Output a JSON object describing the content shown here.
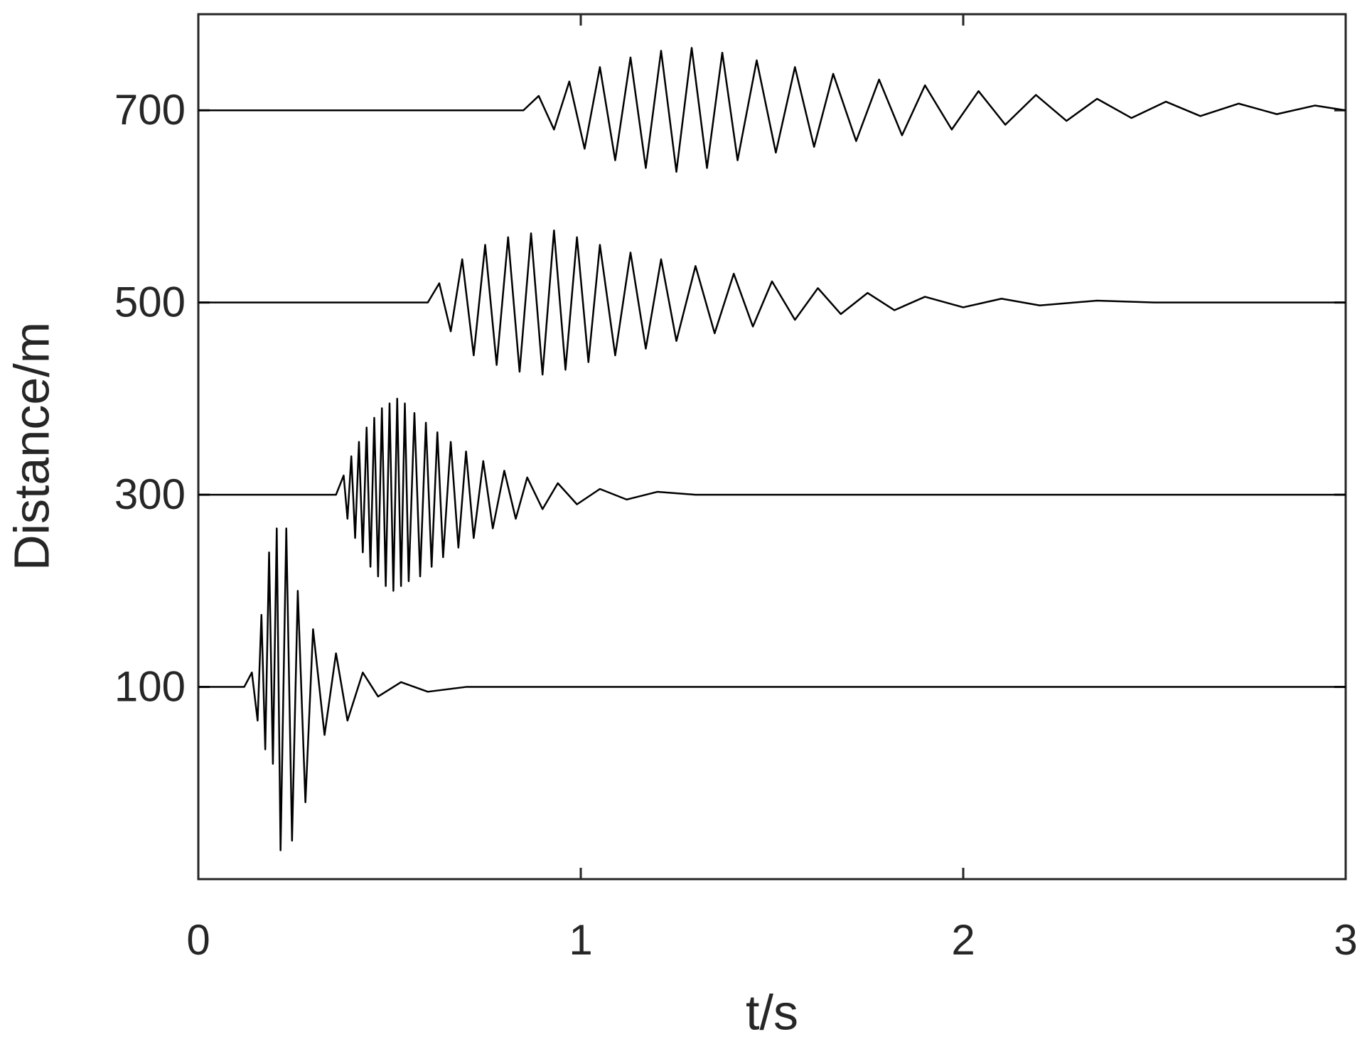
{
  "chart_data": {
    "type": "line",
    "xlabel": "t/s",
    "ylabel": "Distance/m",
    "xlim": [
      0,
      3
    ],
    "xticks": [
      0,
      1,
      2,
      3
    ],
    "ylim": [
      -100,
      800
    ],
    "yticks": [
      100,
      300,
      500,
      700
    ],
    "grid": false,
    "series": [
      {
        "color": "#000000",
        "x": [
          0,
          0.12,
          0.14,
          0.155,
          0.165,
          0.175,
          0.185,
          0.195,
          0.205,
          0.215,
          0.23,
          0.245,
          0.26,
          0.28,
          0.3,
          0.33,
          0.36,
          0.39,
          0.43,
          0.47,
          0.53,
          0.6,
          0.7,
          3
        ],
        "values": [
          100,
          100,
          115,
          65,
          175,
          35,
          240,
          20,
          265,
          -70,
          265,
          -60,
          200,
          -20,
          160,
          50,
          135,
          65,
          115,
          90,
          105,
          95,
          100,
          100
        ]
      },
      {
        "color": "#000000",
        "x": [
          0,
          0.36,
          0.38,
          0.39,
          0.4,
          0.41,
          0.42,
          0.43,
          0.44,
          0.45,
          0.46,
          0.47,
          0.48,
          0.49,
          0.5,
          0.51,
          0.52,
          0.53,
          0.54,
          0.55,
          0.565,
          0.58,
          0.595,
          0.61,
          0.625,
          0.64,
          0.66,
          0.68,
          0.7,
          0.72,
          0.745,
          0.77,
          0.8,
          0.83,
          0.86,
          0.9,
          0.94,
          0.99,
          1.05,
          1.12,
          1.2,
          1.3,
          3
        ],
        "values": [
          300,
          300,
          320,
          275,
          340,
          255,
          355,
          240,
          370,
          225,
          380,
          215,
          390,
          205,
          395,
          200,
          400,
          205,
          395,
          210,
          385,
          215,
          375,
          225,
          365,
          235,
          355,
          245,
          345,
          255,
          335,
          265,
          325,
          275,
          318,
          285,
          312,
          290,
          306,
          295,
          303,
          300,
          300
        ]
      },
      {
        "color": "#000000",
        "x": [
          0,
          0.6,
          0.63,
          0.66,
          0.69,
          0.72,
          0.75,
          0.78,
          0.81,
          0.84,
          0.87,
          0.9,
          0.93,
          0.96,
          0.99,
          1.02,
          1.05,
          1.09,
          1.13,
          1.17,
          1.21,
          1.25,
          1.3,
          1.35,
          1.4,
          1.45,
          1.5,
          1.56,
          1.62,
          1.68,
          1.75,
          1.82,
          1.9,
          2.0,
          2.1,
          2.2,
          2.35,
          2.5,
          3
        ],
        "values": [
          500,
          500,
          520,
          470,
          545,
          445,
          560,
          435,
          568,
          428,
          572,
          425,
          575,
          430,
          568,
          438,
          560,
          445,
          552,
          452,
          545,
          460,
          538,
          468,
          530,
          475,
          522,
          482,
          515,
          488,
          510,
          492,
          506,
          495,
          504,
          497,
          502,
          500,
          500
        ]
      },
      {
        "color": "#000000",
        "x": [
          0,
          0.85,
          0.89,
          0.93,
          0.97,
          1.01,
          1.05,
          1.09,
          1.13,
          1.17,
          1.21,
          1.25,
          1.29,
          1.33,
          1.37,
          1.41,
          1.46,
          1.51,
          1.56,
          1.61,
          1.66,
          1.72,
          1.78,
          1.84,
          1.9,
          1.97,
          2.04,
          2.11,
          2.19,
          2.27,
          2.35,
          2.44,
          2.53,
          2.62,
          2.72,
          2.82,
          2.92,
          3
        ],
        "values": [
          700,
          700,
          715,
          680,
          730,
          660,
          745,
          648,
          755,
          640,
          762,
          636,
          765,
          640,
          760,
          648,
          752,
          656,
          745,
          662,
          738,
          668,
          732,
          674,
          726,
          680,
          720,
          685,
          716,
          689,
          712,
          692,
          709,
          694,
          707,
          696,
          705,
          700
        ]
      }
    ]
  }
}
